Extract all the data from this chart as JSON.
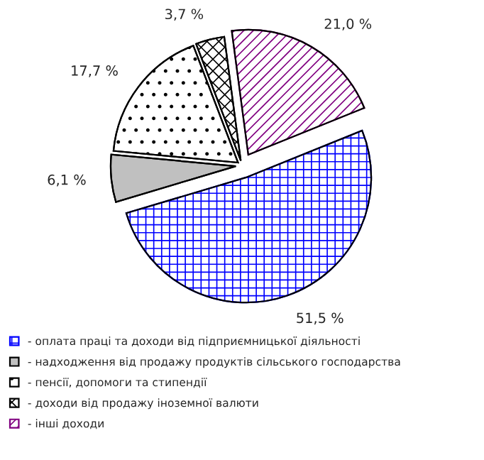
{
  "chart_data": {
    "type": "pie",
    "categories": [
      "- оплата праці та доходи від підприємницької діяльності",
      "- надходження від продажу продуктів сільського господарства",
      "- пенсії, допомоги та стипендії",
      "- доходи від продажу іноземної валюти",
      "- інші доходи"
    ],
    "values": [
      51.5,
      6.1,
      17.7,
      3.7,
      21.0
    ],
    "value_labels": [
      "51,5 %",
      "6,1 %",
      "17,7 %",
      "3,7 %",
      "21,0 %"
    ],
    "colors": [
      "#0000ff",
      "#c0c0c0",
      "#000000",
      "#000000",
      "#800080"
    ],
    "legend": "bottom"
  }
}
